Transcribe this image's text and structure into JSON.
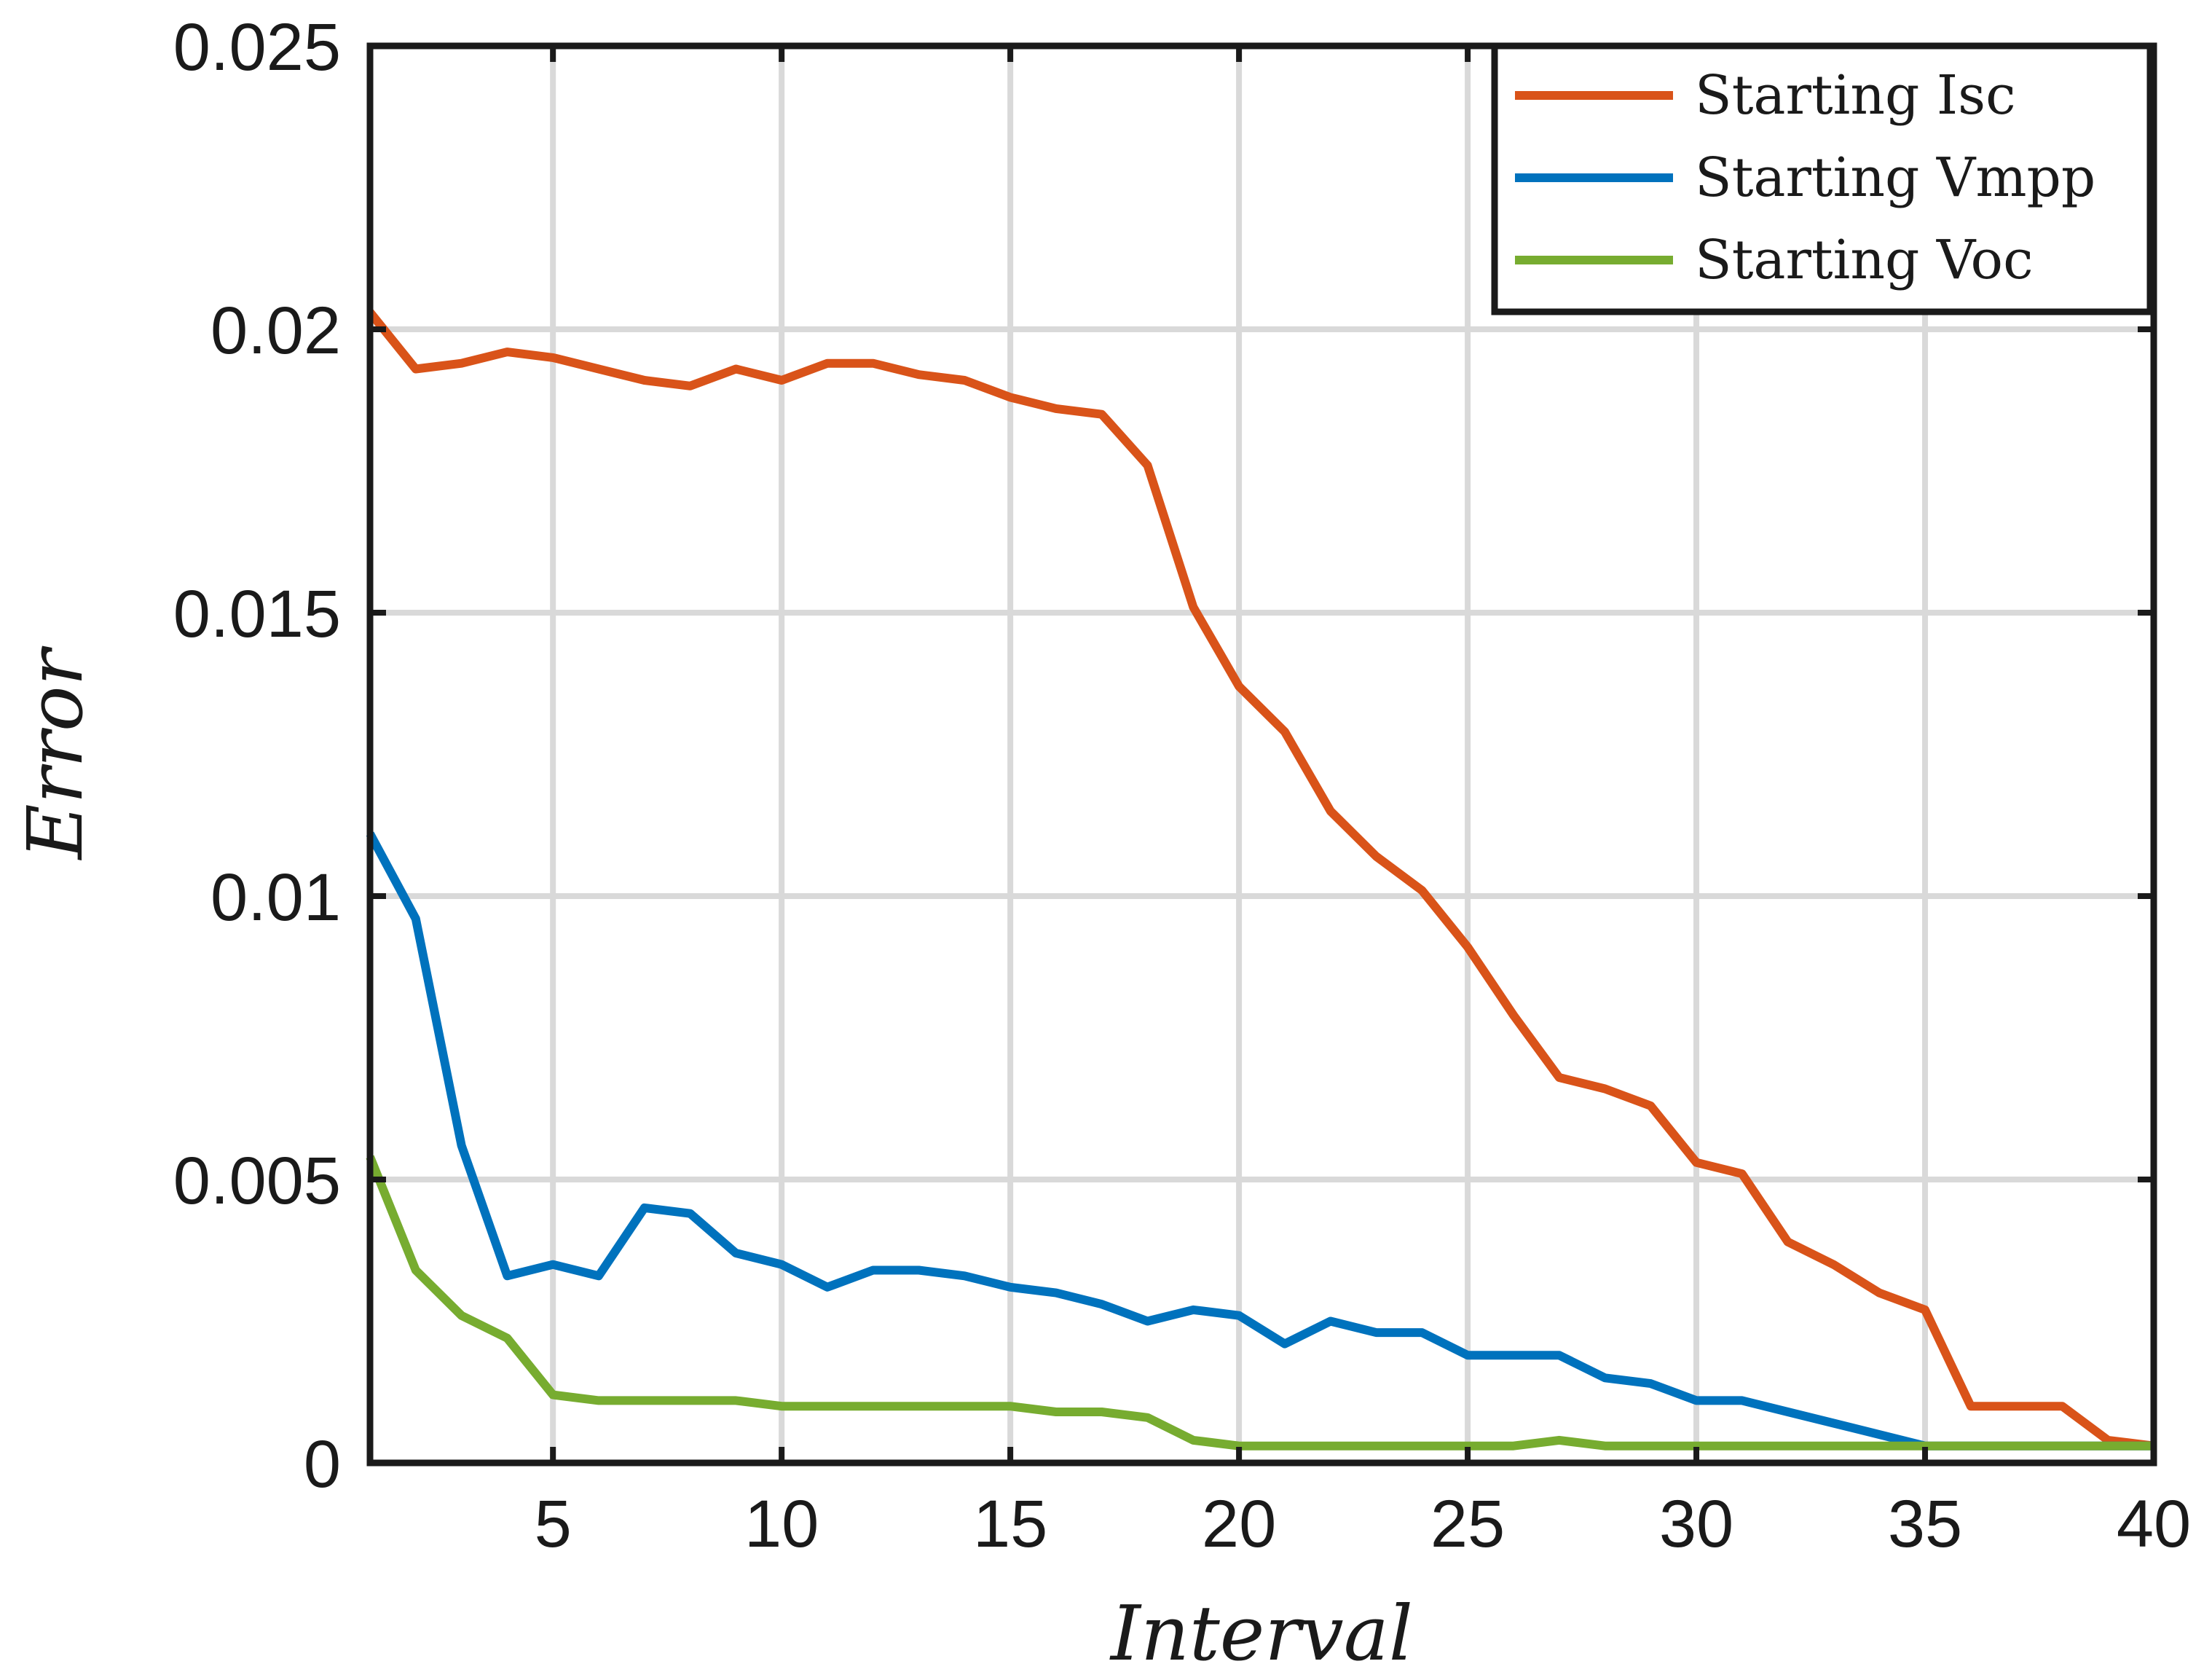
{
  "chart_data": {
    "type": "line",
    "title": "",
    "xlabel": "Interval",
    "ylabel": "Error",
    "xlim": [
      1,
      40
    ],
    "ylim": [
      0,
      0.025
    ],
    "xticks": [
      5,
      10,
      15,
      20,
      25,
      30,
      35,
      40
    ],
    "xtick_labels": [
      "5",
      "10",
      "15",
      "20",
      "25",
      "30",
      "35",
      "40"
    ],
    "yticks": [
      0,
      0.005,
      0.01,
      0.015,
      0.02,
      0.025
    ],
    "ytick_labels": [
      "0",
      "0.005",
      "0.01",
      "0.015",
      "0.02",
      "0.025"
    ],
    "grid": true,
    "legend_position": "top-right",
    "x": [
      1,
      2,
      3,
      4,
      5,
      6,
      7,
      8,
      9,
      10,
      11,
      12,
      13,
      14,
      15,
      16,
      17,
      18,
      19,
      20,
      21,
      22,
      23,
      24,
      25,
      26,
      27,
      28,
      29,
      30,
      31,
      32,
      33,
      34,
      35,
      36,
      37,
      38,
      39,
      40
    ],
    "series": [
      {
        "name": "Starting Isc",
        "color": "#D95319",
        "values": [
          0.0203,
          0.0193,
          0.0194,
          0.0196,
          0.0195,
          0.0193,
          0.0191,
          0.019,
          0.0193,
          0.0191,
          0.0194,
          0.0194,
          0.0192,
          0.0191,
          0.0188,
          0.0186,
          0.0185,
          0.0176,
          0.0151,
          0.0137,
          0.0129,
          0.0115,
          0.0107,
          0.0101,
          0.0091,
          0.0079,
          0.0068,
          0.0066,
          0.0063,
          0.0053,
          0.0051,
          0.0039,
          0.0035,
          0.003,
          0.0027,
          0.001,
          0.001,
          0.001,
          0.0004,
          0.0003
        ]
      },
      {
        "name": "Starting Vmpp",
        "color": "#0072BD",
        "values": [
          0.0111,
          0.0096,
          0.0056,
          0.0033,
          0.0035,
          0.0033,
          0.0045,
          0.0044,
          0.0037,
          0.0035,
          0.0031,
          0.0034,
          0.0034,
          0.0033,
          0.0031,
          0.003,
          0.0028,
          0.0025,
          0.0027,
          0.0026,
          0.0021,
          0.0025,
          0.0023,
          0.0023,
          0.0019,
          0.0019,
          0.0019,
          0.0015,
          0.0014,
          0.0011,
          0.0011,
          0.0009,
          0.0007,
          0.0005,
          0.0003,
          0.0003,
          0.0003,
          0.0003,
          0.0003,
          0.0003
        ]
      },
      {
        "name": "Starting Voc",
        "color": "#77AC30",
        "values": [
          0.0054,
          0.0034,
          0.0026,
          0.0022,
          0.0012,
          0.0011,
          0.0011,
          0.0011,
          0.0011,
          0.001,
          0.001,
          0.001,
          0.001,
          0.001,
          0.001,
          0.0009,
          0.0009,
          0.0008,
          0.0004,
          0.0003,
          0.0003,
          0.0003,
          0.0003,
          0.0003,
          0.0003,
          0.0003,
          0.0004,
          0.0003,
          0.0003,
          0.0003,
          0.0003,
          0.0003,
          0.0003,
          0.0003,
          0.0003,
          0.0003,
          0.0003,
          0.0003,
          0.0003,
          0.0003
        ]
      }
    ]
  }
}
